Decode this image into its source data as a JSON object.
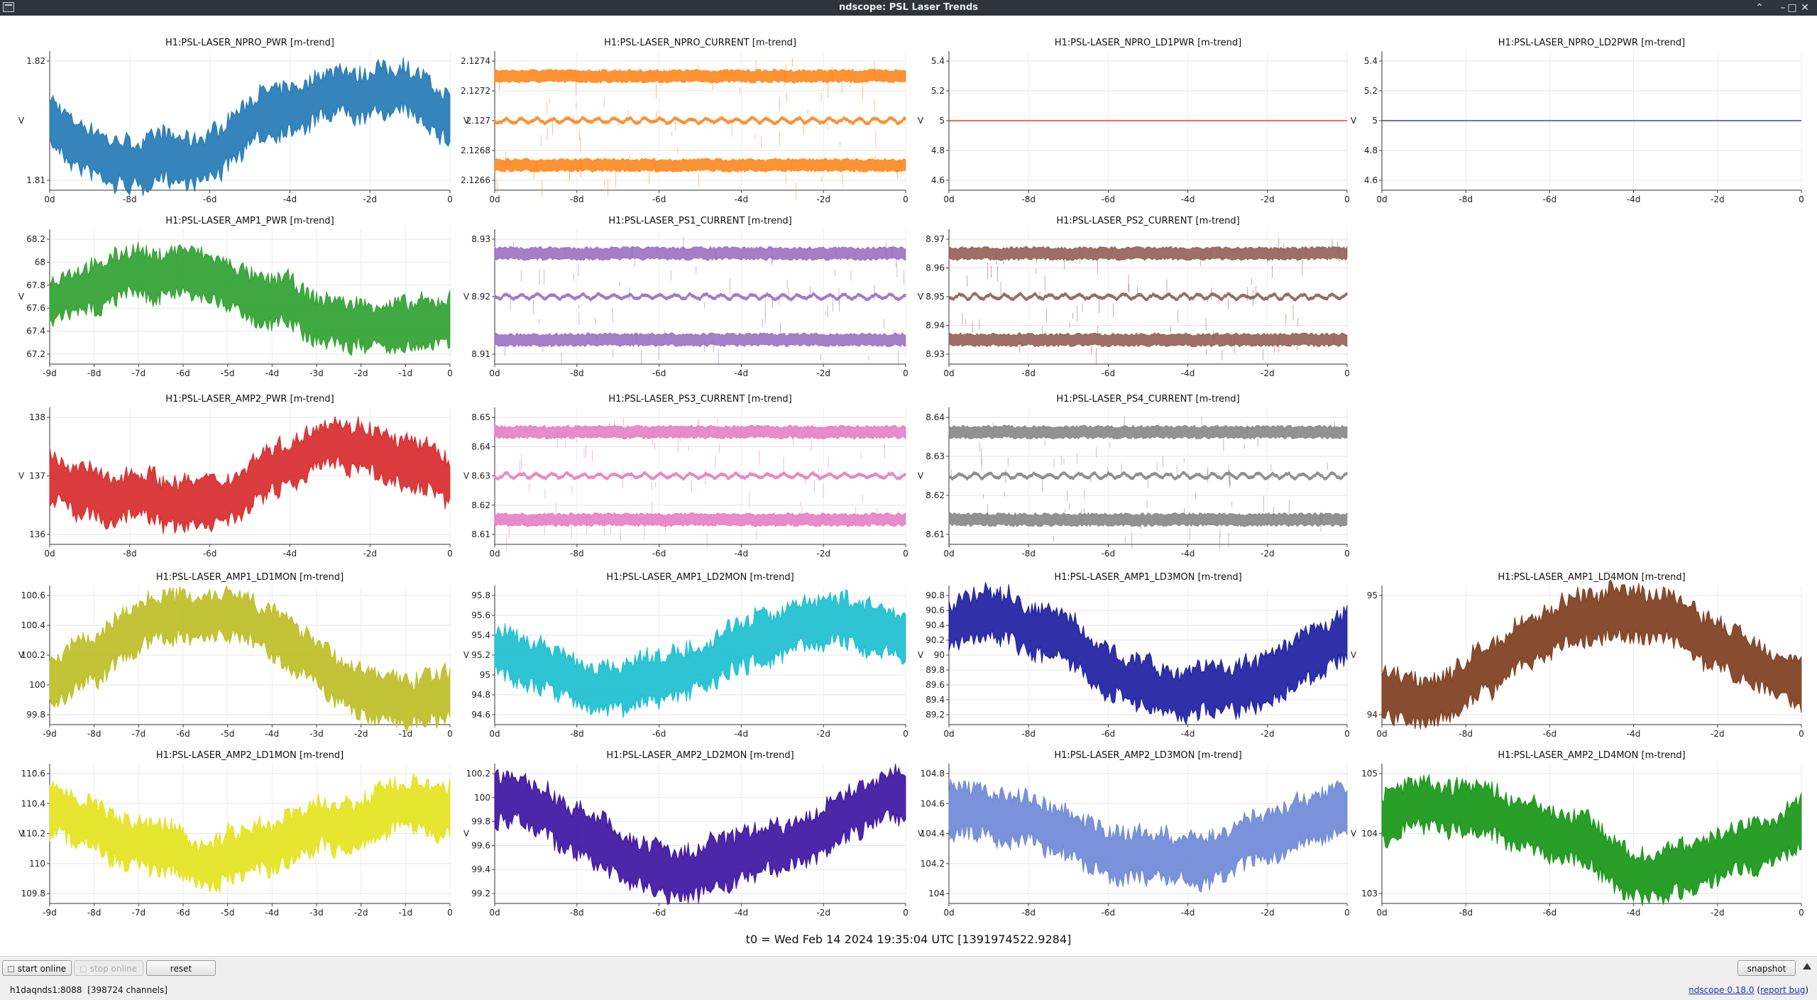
{
  "window": {
    "title": "ndscope: PSL Laser Trends"
  },
  "plots": [
    {
      "title": "H1:PSL-LASER_NPRO_PWR [m-trend]",
      "ylabel": "V",
      "color": "#1f77b4",
      "style": "noise",
      "ytick_labels": [
        "1.82",
        "1.81"
      ],
      "xtick_labels": [
        "0d",
        "-8d",
        "-6d",
        "-4d",
        "-2d",
        "0"
      ]
    },
    {
      "title": "H1:PSL-LASER_NPRO_CURRENT [m-trend]",
      "ylabel": "V",
      "color": "#ff7f0e",
      "style": "bands",
      "ytick_labels": [
        "2.1274",
        "2.1272",
        "2.127",
        "2.1268",
        "2.1266"
      ],
      "xtick_labels": [
        "0d",
        "-8d",
        "-6d",
        "-4d",
        "-2d",
        "0"
      ]
    },
    {
      "title": "H1:PSL-LASER_NPRO_LD1PWR [m-trend]",
      "ylabel": "V",
      "color": "#ff3030",
      "style": "flat",
      "ytick_labels": [
        "5.4",
        "5.2",
        "5",
        "4.8",
        "4.6"
      ],
      "xtick_labels": [
        "0d",
        "-8d",
        "-6d",
        "-4d",
        "-2d",
        "0"
      ]
    },
    {
      "title": "H1:PSL-LASER_NPRO_LD2PWR [m-trend]",
      "ylabel": "V",
      "color": "#4040b0",
      "style": "flat",
      "ytick_labels": [
        "5.4",
        "5.2",
        "5",
        "4.8",
        "4.6"
      ],
      "xtick_labels": [
        "0d",
        "-8d",
        "-6d",
        "-4d",
        "-2d",
        "0"
      ]
    },
    {
      "title": "H1:PSL-LASER_AMP1_PWR [m-trend]",
      "ylabel": "V",
      "color": "#2ca02c",
      "style": "noise",
      "ytick_labels": [
        "68.2",
        "68",
        "67.8",
        "67.6",
        "67.4",
        "67.2"
      ],
      "xtick_labels": [
        "-9d",
        "-8d",
        "-7d",
        "-6d",
        "-5d",
        "-4d",
        "-3d",
        "-2d",
        "-1d",
        "0"
      ]
    },
    {
      "title": "H1:PSL-LASER_PS1_CURRENT [m-trend]",
      "ylabel": "V",
      "color": "#9467bd",
      "style": "bands",
      "ytick_labels": [
        "8.93",
        "8.92",
        "8.91"
      ],
      "xtick_labels": [
        "0d",
        "-8d",
        "-6d",
        "-4d",
        "-2d",
        "0"
      ]
    },
    {
      "title": "H1:PSL-LASER_PS2_CURRENT [m-trend]",
      "ylabel": "V",
      "color": "#8c564b",
      "style": "bands",
      "ytick_labels": [
        "8.97",
        "8.96",
        "8.95",
        "8.94",
        "8.93"
      ],
      "xtick_labels": [
        "0d",
        "-8d",
        "-6d",
        "-4d",
        "-2d",
        "0"
      ]
    },
    {
      "title": "H1:PSL-LASER_AMP2_PWR [m-trend]",
      "ylabel": "V",
      "color": "#d62728",
      "style": "noise",
      "ytick_labels": [
        "138",
        "137",
        "136"
      ],
      "xtick_labels": [
        "0d",
        "-8d",
        "-6d",
        "-4d",
        "-2d",
        "0"
      ]
    },
    {
      "title": "H1:PSL-LASER_PS3_CURRENT [m-trend]",
      "ylabel": "V",
      "color": "#e377c2",
      "style": "bands",
      "ytick_labels": [
        "8.65",
        "8.64",
        "8.63",
        "8.62",
        "8.61"
      ],
      "xtick_labels": [
        "0d",
        "-8d",
        "-6d",
        "-4d",
        "-2d",
        "0"
      ]
    },
    {
      "title": "H1:PSL-LASER_PS4_CURRENT [m-trend]",
      "ylabel": "V",
      "color": "#7f7f7f",
      "style": "bands",
      "ytick_labels": [
        "8.64",
        "8.63",
        "8.62",
        "8.61"
      ],
      "xtick_labels": [
        "0d",
        "-8d",
        "-6d",
        "-4d",
        "-2d",
        "0"
      ]
    },
    {
      "title": "H1:PSL-LASER_AMP1_LD1MON [m-trend]",
      "ylabel": "V",
      "color": "#bcbd22",
      "style": "noise",
      "ytick_labels": [
        "100.6",
        "100.4",
        "100.2",
        "100",
        "99.8"
      ],
      "xtick_labels": [
        "-9d",
        "-8d",
        "-7d",
        "-6d",
        "-5d",
        "-4d",
        "-3d",
        "-2d",
        "-1d",
        "0"
      ]
    },
    {
      "title": "H1:PSL-LASER_AMP1_LD2MON [m-trend]",
      "ylabel": "V",
      "color": "#17becf",
      "style": "noise",
      "ytick_labels": [
        "95.8",
        "95.6",
        "95.4",
        "95.2",
        "95",
        "94.8",
        "94.6"
      ],
      "xtick_labels": [
        "0d",
        "-8d",
        "-6d",
        "-4d",
        "-2d",
        "0"
      ]
    },
    {
      "title": "H1:PSL-LASER_AMP1_LD3MON [m-trend]",
      "ylabel": "V",
      "color": "#1a1aa0",
      "style": "noise",
      "ytick_labels": [
        "90.8",
        "90.6",
        "90.4",
        "90.2",
        "90",
        "89.8",
        "89.6",
        "89.4",
        "89.2"
      ],
      "xtick_labels": [
        "0d",
        "-8d",
        "-6d",
        "-4d",
        "-2d",
        "0"
      ]
    },
    {
      "title": "H1:PSL-LASER_AMP1_LD4MON [m-trend]",
      "ylabel": "V",
      "color": "#7b3a1a",
      "style": "noise",
      "ytick_labels": [
        "95",
        "94"
      ],
      "xtick_labels": [
        "0d",
        "-8d",
        "-6d",
        "-4d",
        "-2d",
        "0"
      ]
    },
    {
      "title": "H1:PSL-LASER_AMP2_LD1MON [m-trend]",
      "ylabel": "V",
      "color": "#e3e31a",
      "style": "noise",
      "ytick_labels": [
        "110.6",
        "110.4",
        "110.2",
        "110",
        "109.8"
      ],
      "xtick_labels": [
        "-9d",
        "-8d",
        "-7d",
        "-6d",
        "-5d",
        "-4d",
        "-3d",
        "-2d",
        "-1d",
        "0"
      ]
    },
    {
      "title": "H1:PSL-LASER_AMP2_LD2MON [m-trend]",
      "ylabel": "V",
      "color": "#3a0fa0",
      "style": "noise",
      "ytick_labels": [
        "100.2",
        "100",
        "99.8",
        "99.6",
        "99.4",
        "99.2"
      ],
      "xtick_labels": [
        "0d",
        "-8d",
        "-6d",
        "-4d",
        "-2d",
        "0"
      ]
    },
    {
      "title": "H1:PSL-LASER_AMP2_LD3MON [m-trend]",
      "ylabel": "V",
      "color": "#6b86d6",
      "style": "noise",
      "ytick_labels": [
        "104.8",
        "104.6",
        "104.4",
        "104.2",
        "104"
      ],
      "xtick_labels": [
        "0d",
        "-8d",
        "-6d",
        "-4d",
        "-2d",
        "0"
      ]
    },
    {
      "title": "H1:PSL-LASER_AMP2_LD4MON [m-trend]",
      "ylabel": "V",
      "color": "#129312",
      "style": "noise",
      "ytick_labels": [
        "105",
        "104",
        "103"
      ],
      "xtick_labels": [
        "0d",
        "-8d",
        "-6d",
        "-4d",
        "-2d",
        "0"
      ]
    }
  ],
  "t0_label": "t0 = Wed Feb 14 2024 19:35:04 UTC [1391974522.9284]",
  "controls": {
    "start_online": "start online",
    "stop_online": "stop online",
    "reset": "reset",
    "snapshot": "snapshot"
  },
  "status": {
    "server": "h1daqnds1:8088",
    "channels": "[398724 channels]",
    "version": "ndscope 0.18.0",
    "report_bug": "report bug"
  }
}
